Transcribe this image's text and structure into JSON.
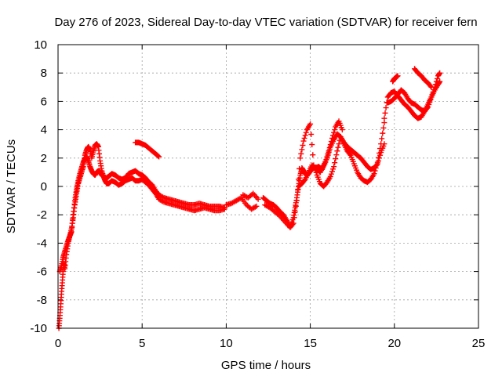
{
  "chart_data": {
    "type": "scatter",
    "title": "Day 276 of 2023, Sidereal Day-to-day VTEC variation (SDTVAR) for receiver fern",
    "xlabel": "GPS time / hours",
    "ylabel": "SDTVAR / TECUs",
    "xlim": [
      0,
      25
    ],
    "ylim": [
      -10,
      10
    ],
    "x_ticks": [
      0,
      5,
      10,
      15,
      20,
      25
    ],
    "x_tick_labels": [
      "0",
      "5",
      "10",
      "15",
      "20",
      "25"
    ],
    "y_ticks": [
      -10,
      -8,
      -6,
      -4,
      -2,
      0,
      2,
      4,
      6,
      8,
      10
    ],
    "y_tick_labels": [
      "-10",
      "-8",
      "-6",
      "-4",
      "-2",
      "0",
      "2",
      "4",
      "6",
      "8",
      "10"
    ],
    "grid": true,
    "marker": "plus",
    "series": [
      {
        "name": "SDTVAR",
        "color": "#ff0000",
        "segments": [
          {
            "x": [
              0.05,
              0.1,
              0.15,
              0.2,
              0.25,
              0.3,
              0.35,
              0.4,
              0.5,
              0.6,
              0.7,
              0.8,
              0.9,
              1.0,
              1.1,
              1.2,
              1.3,
              1.4,
              1.5,
              1.6,
              1.7,
              1.8,
              1.9,
              2.0,
              2.1,
              2.2,
              2.3,
              2.4,
              2.5,
              2.6,
              2.7,
              2.8,
              2.9,
              3.0,
              3.2,
              3.4,
              3.6,
              3.8,
              4.0,
              4.2,
              4.4,
              4.6,
              4.8,
              5.0,
              5.2,
              5.4,
              5.6,
              5.8,
              6.0,
              6.3,
              6.6,
              6.9,
              7.2,
              7.5,
              7.8,
              8.1,
              8.4,
              8.7,
              9.0,
              9.3,
              9.6,
              9.9
            ],
            "y": [
              -10,
              -9.3,
              -8.5,
              -7.6,
              -6.8,
              -6.0,
              -5.4,
              -5.8,
              -4.8,
              -4.0,
              -3.5,
              -3.2,
              -2.0,
              -1.0,
              -0.2,
              0.4,
              0.9,
              1.3,
              1.7,
              2.0,
              2.1,
              1.8,
              1.4,
              1.1,
              0.9,
              0.8,
              1.0,
              1.1,
              1.0,
              0.8,
              0.7,
              0.6,
              0.6,
              0.7,
              0.9,
              0.8,
              0.6,
              0.5,
              0.6,
              0.9,
              1.0,
              1.1,
              0.9,
              0.8,
              0.6,
              0.3,
              0.1,
              -0.3,
              -0.6,
              -0.8,
              -0.9,
              -1.0,
              -1.1,
              -1.2,
              -1.3,
              -1.3,
              -1.2,
              -1.3,
              -1.4,
              -1.4,
              -1.4,
              -1.5
            ]
          },
          {
            "x": [
              0.1,
              0.2,
              0.3,
              0.4,
              0.5,
              0.6,
              0.7,
              0.8,
              0.9,
              1.0,
              1.1,
              1.2,
              1.3,
              1.4,
              1.5,
              1.6,
              1.7,
              1.8,
              1.9,
              2.0,
              2.1,
              2.2,
              2.3,
              2.4,
              2.5,
              2.6,
              2.7,
              2.8,
              2.9,
              3.0,
              3.2,
              3.4,
              3.6,
              3.8,
              4.0,
              4.2,
              4.4,
              4.6,
              4.8,
              5.0,
              5.2,
              5.4,
              5.6,
              5.8,
              6.0,
              6.3,
              6.6,
              6.9,
              7.2,
              7.5,
              7.8,
              8.1,
              8.4,
              8.7,
              9.0,
              9.3,
              9.6,
              9.9
            ],
            "y": [
              -6.0,
              -5.6,
              -5.0,
              -4.6,
              -4.2,
              -3.8,
              -3.5,
              -3.0,
              -2.2,
              -1.3,
              -0.5,
              0.2,
              0.6,
              1.0,
              1.4,
              2.2,
              2.6,
              2.8,
              2.6,
              2.0,
              2.5,
              2.9,
              3.0,
              2.8,
              1.8,
              1.1,
              0.7,
              0.4,
              0.2,
              0.2,
              0.4,
              0.3,
              0.1,
              0.2,
              0.4,
              0.5,
              0.6,
              0.4,
              0.4,
              0.5,
              0.3,
              0.1,
              -0.2,
              -0.5,
              -0.9,
              -1.1,
              -1.2,
              -1.3,
              -1.4,
              -1.5,
              -1.6,
              -1.7,
              -1.6,
              -1.5,
              -1.6,
              -1.7,
              -1.7,
              -1.6
            ]
          },
          {
            "x": [
              4.6,
              4.8,
              5.0,
              5.2,
              5.4,
              5.6,
              5.8,
              6.0
            ],
            "y": [
              3.1,
              3.1,
              3.0,
              2.9,
              2.7,
              2.5,
              2.3,
              2.1
            ]
          },
          {
            "x": [
              10.0,
              10.3,
              10.6,
              10.9,
              11.2,
              11.5,
              11.8
            ],
            "y": [
              -1.3,
              -1.2,
              -1.0,
              -0.8,
              -1.3,
              -1.6,
              -1.4
            ]
          },
          {
            "x": [
              11.0,
              11.3,
              11.6,
              11.9
            ],
            "y": [
              -0.6,
              -0.8,
              -0.5,
              -0.9
            ]
          },
          {
            "x": [
              12.2,
              12.4,
              12.6,
              12.8,
              13.0,
              13.2,
              13.4,
              13.6,
              13.8,
              14.0,
              14.1,
              14.2,
              14.3,
              14.4,
              14.5,
              14.6,
              14.7,
              14.8,
              14.9,
              15.0,
              15.1,
              15.2,
              15.4,
              15.6,
              15.8,
              16.0,
              16.2,
              16.4,
              16.6,
              16.8,
              17.0,
              17.2,
              17.4,
              17.6,
              17.8,
              18.0,
              18.2,
              18.4,
              18.6,
              18.8,
              19.0,
              19.2,
              19.4
            ],
            "y": [
              -0.8,
              -1.0,
              -1.2,
              -1.3,
              -1.5,
              -1.8,
              -2.0,
              -2.4,
              -2.8,
              -2.2,
              -1.5,
              -0.8,
              0.0,
              0.8,
              1.3,
              1.1,
              0.9,
              0.8,
              0.9,
              1.1,
              1.2,
              1.3,
              1.2,
              1.0,
              1.5,
              2.0,
              2.8,
              3.3,
              3.7,
              3.5,
              3.1,
              2.8,
              2.6,
              2.4,
              2.2,
              2.0,
              1.7,
              1.4,
              1.2,
              1.3,
              1.6,
              2.4,
              3.0
            ]
          },
          {
            "x": [
              12.3,
              12.6,
              12.9,
              13.2,
              13.5,
              13.8,
              14.0,
              14.2,
              14.4,
              14.6,
              14.8,
              15.0,
              15.2,
              15.4,
              15.6,
              15.8,
              16.0,
              16.2,
              16.4,
              16.6,
              16.8,
              17.0,
              17.2,
              17.4,
              17.6,
              17.8,
              18.0,
              18.2,
              18.4,
              18.6,
              18.8,
              19.0,
              19.2,
              19.4
            ],
            "y": [
              -1.3,
              -1.5,
              -1.8,
              -2.1,
              -2.5,
              -2.9,
              -2.6,
              -1.0,
              2.0,
              3.2,
              4.0,
              4.4,
              1.5,
              0.8,
              0.2,
              0.0,
              0.3,
              0.7,
              1.4,
              2.5,
              3.5,
              3.0,
              2.5,
              2.2,
              1.6,
              1.0,
              0.6,
              0.4,
              0.3,
              0.5,
              0.9,
              1.7,
              3.0,
              4.5
            ]
          },
          {
            "x": [
              14.3,
              14.5,
              14.7,
              14.9,
              15.1,
              15.3,
              15.5,
              15.7,
              15.9,
              16.1,
              16.3,
              16.5,
              16.7,
              16.9
            ],
            "y": [
              0.0,
              0.2,
              0.5,
              1.0,
              1.5,
              1.3,
              1.4,
              1.2,
              1.7,
              2.5,
              3.4,
              4.2,
              4.6,
              4.0
            ]
          },
          {
            "x": [
              19.4,
              19.6,
              19.8,
              20.0,
              20.2,
              20.4,
              20.6,
              20.8,
              21.0,
              21.2,
              21.4,
              21.6,
              21.8,
              22.0,
              22.2,
              22.4,
              22.6,
              22.7
            ],
            "y": [
              4.8,
              6.3,
              6.6,
              6.7,
              6.4,
              6.1,
              5.8,
              5.6,
              5.3,
              5.0,
              4.8,
              4.9,
              5.3,
              5.8,
              6.3,
              6.8,
              7.2,
              7.4
            ]
          },
          {
            "x": [
              19.6,
              19.8,
              20.0,
              20.2,
              20.4,
              20.6,
              20.8,
              21.0,
              21.2,
              21.4,
              21.6,
              21.8,
              22.0,
              22.2,
              22.4,
              22.6,
              22.7
            ],
            "y": [
              5.9,
              6.0,
              6.2,
              6.5,
              6.8,
              6.6,
              6.2,
              5.9,
              5.8,
              5.6,
              5.4,
              5.3,
              5.6,
              6.3,
              7.0,
              7.8,
              8.0
            ]
          },
          {
            "x": [
              19.9,
              20.0,
              20.1,
              20.2
            ],
            "y": [
              7.4,
              7.6,
              7.7,
              7.8
            ]
          },
          {
            "x": [
              21.2,
              21.4,
              21.6,
              21.8,
              22.0,
              22.2
            ],
            "y": [
              8.3,
              8.0,
              7.8,
              7.5,
              7.3,
              7.0
            ]
          }
        ]
      }
    ]
  }
}
